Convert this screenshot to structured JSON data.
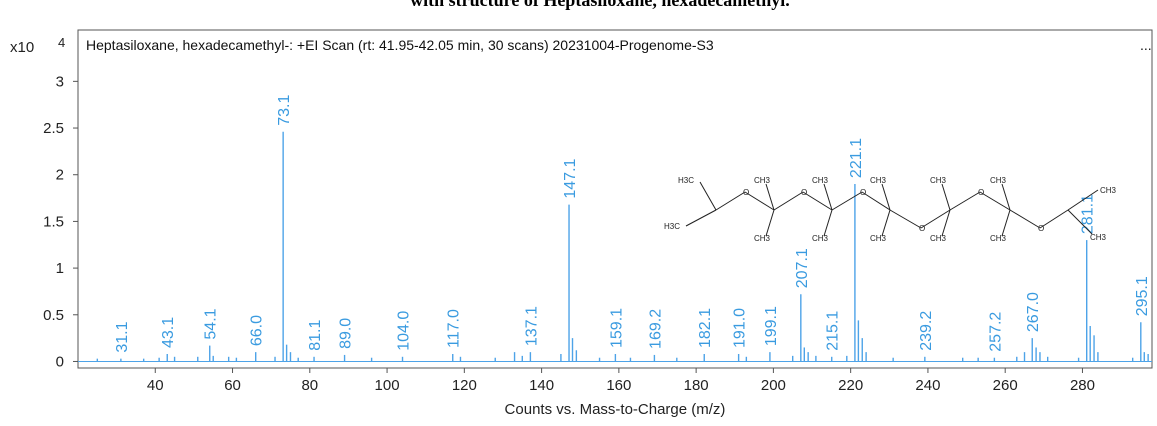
{
  "header": "with structure of Heptasiloxane, hexadecamethyl.",
  "chart_data": {
    "type": "spectrum",
    "title": "Heptasiloxane, hexadecamethyl-: +EI Scan (rt: 41.95-42.05 min, 30 scans) 20231004-Progenome-S3",
    "title_more": "...",
    "x_label": "Counts vs. Mass-to-Charge (m/z)",
    "y_multiplier": "x10",
    "y_exponent": "4",
    "color": "#4da3e8",
    "xlim": [
      20,
      298
    ],
    "xticks": [
      40,
      60,
      80,
      100,
      120,
      140,
      160,
      180,
      200,
      220,
      240,
      260,
      280
    ],
    "ylim": [
      -0.07,
      3.55
    ],
    "yticks": [
      0,
      0.5,
      1,
      1.5,
      2,
      2.5,
      3
    ],
    "x": [
      25,
      31.1,
      37,
      41,
      43.1,
      45,
      51,
      54.1,
      55,
      59,
      61,
      66.0,
      71,
      73.1,
      74,
      75,
      77,
      81.1,
      89.0,
      96,
      104.0,
      117.0,
      119,
      128,
      133,
      135,
      137.1,
      145,
      147.1,
      148,
      149,
      155,
      159.1,
      163,
      169.2,
      175,
      182.1,
      191.0,
      193,
      199.1,
      205,
      207.1,
      208,
      209,
      211,
      215.1,
      219,
      221.1,
      222,
      223,
      224,
      231,
      239.2,
      249,
      253,
      257.2,
      263,
      265,
      267.0,
      268,
      269,
      271,
      279,
      281.1,
      282,
      283,
      284,
      293,
      295.1,
      296,
      297
    ],
    "values": [
      0.03,
      0.03,
      0.03,
      0.04,
      0.08,
      0.05,
      0.05,
      0.17,
      0.06,
      0.05,
      0.04,
      0.1,
      0.05,
      2.46,
      0.18,
      0.1,
      0.04,
      0.05,
      0.07,
      0.04,
      0.05,
      0.08,
      0.05,
      0.04,
      0.1,
      0.06,
      0.1,
      0.08,
      1.68,
      0.25,
      0.12,
      0.04,
      0.08,
      0.04,
      0.07,
      0.04,
      0.08,
      0.08,
      0.05,
      0.1,
      0.06,
      0.72,
      0.15,
      0.1,
      0.06,
      0.05,
      0.06,
      1.9,
      0.44,
      0.25,
      0.1,
      0.04,
      0.05,
      0.04,
      0.04,
      0.04,
      0.05,
      0.1,
      0.25,
      0.15,
      0.1,
      0.05,
      0.04,
      1.3,
      0.38,
      0.28,
      0.1,
      0.04,
      0.42,
      0.1,
      0.08
    ],
    "x_labels": [
      null,
      "31.1",
      null,
      null,
      "43.1",
      null,
      null,
      "54.1",
      null,
      null,
      null,
      "66.0",
      null,
      "73.1",
      null,
      null,
      null,
      "81.1",
      "89.0",
      null,
      "104.0",
      "117.0",
      null,
      null,
      null,
      null,
      "137.1",
      null,
      "147.1",
      null,
      null,
      null,
      "159.1",
      null,
      "169.2",
      null,
      "182.1",
      "191.0",
      null,
      "199.1",
      null,
      "207.1",
      null,
      null,
      null,
      "215.1",
      null,
      "221.1",
      null,
      null,
      null,
      null,
      "239.2",
      null,
      null,
      "257.2",
      null,
      null,
      "267.0",
      null,
      null,
      null,
      null,
      "281.1",
      null,
      null,
      null,
      null,
      "295.1",
      null,
      null
    ]
  },
  "structure": {
    "end_left": [
      "H3C",
      "H3C"
    ],
    "end_right": [
      "CH3",
      "CH3"
    ],
    "oxygens": [
      "O",
      "O",
      "O",
      "O",
      "O",
      "O"
    ],
    "methyls_top": [
      "CH3",
      "CH3",
      "CH3",
      "CH3",
      "CH3"
    ],
    "methyls_bottom": [
      "CH3",
      "CH3",
      "CH3",
      "CH3",
      "CH3"
    ]
  }
}
